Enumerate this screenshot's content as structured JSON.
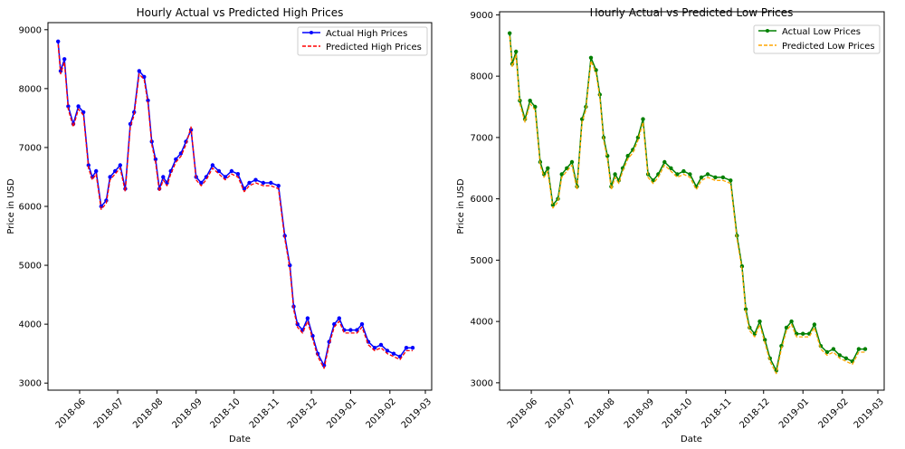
{
  "chart_data": [
    {
      "type": "line",
      "title": "Hourly Actual vs Predicted High Prices",
      "xlabel": "Date",
      "ylabel": "Price in USD",
      "x_ticks": [
        "2018-06",
        "2018-07",
        "2018-08",
        "2018-09",
        "2018-10",
        "2018-11",
        "2018-12",
        "2019-01",
        "2019-02",
        "2019-03"
      ],
      "y_ticks": [
        "3000",
        "4000",
        "5000",
        "6000",
        "7000",
        "8000",
        "9000"
      ],
      "ylim": [
        2880,
        9120
      ],
      "xlim": [
        "2018-05-07",
        "2019-03-06"
      ],
      "legend": "upper right",
      "grid": false,
      "series": [
        {
          "name": "Actual High Prices",
          "color": "#0000ff",
          "style": "solid-marker",
          "x": [
            "2018-05-15",
            "2018-05-17",
            "2018-05-20",
            "2018-05-23",
            "2018-05-27",
            "2018-05-31",
            "2018-06-04",
            "2018-06-08",
            "2018-06-11",
            "2018-06-14",
            "2018-06-18",
            "2018-06-22",
            "2018-06-25",
            "2018-06-29",
            "2018-07-03",
            "2018-07-07",
            "2018-07-11",
            "2018-07-14",
            "2018-07-18",
            "2018-07-22",
            "2018-07-25",
            "2018-07-28",
            "2018-07-31",
            "2018-08-03",
            "2018-08-06",
            "2018-08-09",
            "2018-08-12",
            "2018-08-16",
            "2018-08-20",
            "2018-08-24",
            "2018-08-28",
            "2018-09-01",
            "2018-09-05",
            "2018-09-09",
            "2018-09-14",
            "2018-09-19",
            "2018-09-24",
            "2018-09-29",
            "2018-10-04",
            "2018-10-09",
            "2018-10-13",
            "2018-10-18",
            "2018-10-24",
            "2018-10-30",
            "2018-11-05",
            "2018-11-10",
            "2018-11-14",
            "2018-11-17",
            "2018-11-20",
            "2018-11-24",
            "2018-11-28",
            "2018-12-02",
            "2018-12-06",
            "2018-12-11",
            "2018-12-15",
            "2018-12-19",
            "2018-12-23",
            "2018-12-27",
            "2019-01-01",
            "2019-01-06",
            "2019-01-10",
            "2019-01-15",
            "2019-01-20",
            "2019-01-25",
            "2019-01-30",
            "2019-02-04",
            "2019-02-09",
            "2019-02-14",
            "2019-02-19"
          ],
          "values": [
            8800,
            8300,
            8500,
            7700,
            7400,
            7700,
            7600,
            6700,
            6500,
            6600,
            6000,
            6100,
            6500,
            6600,
            6700,
            6300,
            7400,
            7600,
            8300,
            8200,
            7800,
            7100,
            6800,
            6300,
            6500,
            6400,
            6600,
            6800,
            6900,
            7100,
            7300,
            6500,
            6400,
            6500,
            6700,
            6600,
            6500,
            6600,
            6550,
            6300,
            6400,
            6450,
            6400,
            6400,
            6350,
            5500,
            5000,
            4300,
            4000,
            3900,
            4100,
            3800,
            3500,
            3300,
            3700,
            4000,
            4100,
            3900,
            3900,
            3900,
            4000,
            3700,
            3600,
            3650,
            3550,
            3500,
            3450,
            3600,
            3600
          ]
        },
        {
          "name": "Predicted High Prices",
          "color": "#ff0000",
          "style": "dashed",
          "x": [
            "2018-05-15",
            "2018-05-17",
            "2018-05-20",
            "2018-05-23",
            "2018-05-27",
            "2018-05-31",
            "2018-06-04",
            "2018-06-08",
            "2018-06-11",
            "2018-06-14",
            "2018-06-18",
            "2018-06-22",
            "2018-06-25",
            "2018-06-29",
            "2018-07-03",
            "2018-07-07",
            "2018-07-11",
            "2018-07-14",
            "2018-07-18",
            "2018-07-22",
            "2018-07-25",
            "2018-07-28",
            "2018-07-31",
            "2018-08-03",
            "2018-08-06",
            "2018-08-09",
            "2018-08-12",
            "2018-08-16",
            "2018-08-20",
            "2018-08-24",
            "2018-08-28",
            "2018-09-01",
            "2018-09-05",
            "2018-09-09",
            "2018-09-14",
            "2018-09-19",
            "2018-09-24",
            "2018-09-29",
            "2018-10-04",
            "2018-10-09",
            "2018-10-13",
            "2018-10-18",
            "2018-10-24",
            "2018-10-30",
            "2018-11-05",
            "2018-11-10",
            "2018-11-14",
            "2018-11-17",
            "2018-11-20",
            "2018-11-24",
            "2018-11-28",
            "2018-12-02",
            "2018-12-06",
            "2018-12-11",
            "2018-12-15",
            "2018-12-19",
            "2018-12-23",
            "2018-12-27",
            "2019-01-01",
            "2019-01-06",
            "2019-01-10",
            "2019-01-15",
            "2019-01-20",
            "2019-01-25",
            "2019-01-30",
            "2019-02-04",
            "2019-02-09",
            "2019-02-14",
            "2019-02-19"
          ],
          "values": [
            8750,
            8250,
            8450,
            7650,
            7350,
            7650,
            7550,
            6650,
            6450,
            6550,
            5950,
            6050,
            6450,
            6550,
            6650,
            6250,
            7350,
            7550,
            8250,
            8150,
            7750,
            7050,
            6750,
            6250,
            6450,
            6350,
            6550,
            6750,
            6850,
            7050,
            7350,
            6450,
            6350,
            6450,
            6650,
            6550,
            6450,
            6550,
            6500,
            6250,
            6350,
            6400,
            6350,
            6350,
            6300,
            5450,
            4950,
            4250,
            3950,
            3850,
            4050,
            3750,
            3450,
            3250,
            3650,
            3950,
            4050,
            3850,
            3850,
            3850,
            3950,
            3650,
            3550,
            3600,
            3500,
            3450,
            3400,
            3550,
            3550
          ]
        }
      ]
    },
    {
      "type": "line",
      "title": "Hourly Actual vs Predicted Low Prices",
      "xlabel": "Date",
      "ylabel": "Price in USD",
      "x_ticks": [
        "2018-06",
        "2018-07",
        "2018-08",
        "2018-09",
        "2018-10",
        "2018-11",
        "2018-12",
        "2019-01",
        "2019-02",
        "2019-03"
      ],
      "y_ticks": [
        "3000",
        "4000",
        "5000",
        "6000",
        "7000",
        "8000",
        "9000"
      ],
      "ylim": [
        2880,
        9050
      ],
      "xlim": [
        "2018-05-07",
        "2019-03-06"
      ],
      "legend": "upper right",
      "grid": false,
      "series": [
        {
          "name": "Actual Low Prices",
          "color": "#008000",
          "style": "solid-marker",
          "x": [
            "2018-05-15",
            "2018-05-17",
            "2018-05-20",
            "2018-05-23",
            "2018-05-27",
            "2018-05-31",
            "2018-06-04",
            "2018-06-08",
            "2018-06-11",
            "2018-06-14",
            "2018-06-18",
            "2018-06-22",
            "2018-06-25",
            "2018-06-29",
            "2018-07-03",
            "2018-07-07",
            "2018-07-11",
            "2018-07-14",
            "2018-07-18",
            "2018-07-22",
            "2018-07-25",
            "2018-07-28",
            "2018-07-31",
            "2018-08-03",
            "2018-08-06",
            "2018-08-09",
            "2018-08-12",
            "2018-08-16",
            "2018-08-20",
            "2018-08-24",
            "2018-08-28",
            "2018-09-01",
            "2018-09-05",
            "2018-09-09",
            "2018-09-14",
            "2018-09-19",
            "2018-09-24",
            "2018-09-29",
            "2018-10-04",
            "2018-10-09",
            "2018-10-13",
            "2018-10-18",
            "2018-10-24",
            "2018-10-30",
            "2018-11-05",
            "2018-11-10",
            "2018-11-14",
            "2018-11-17",
            "2018-11-20",
            "2018-11-24",
            "2018-11-28",
            "2018-12-02",
            "2018-12-06",
            "2018-12-11",
            "2018-12-15",
            "2018-12-19",
            "2018-12-23",
            "2018-12-27",
            "2019-01-01",
            "2019-01-06",
            "2019-01-10",
            "2019-01-15",
            "2019-01-20",
            "2019-01-25",
            "2019-01-30",
            "2019-02-04",
            "2019-02-09",
            "2019-02-14",
            "2019-02-19"
          ],
          "values": [
            8700,
            8200,
            8400,
            7600,
            7300,
            7600,
            7500,
            6600,
            6400,
            6500,
            5900,
            6000,
            6400,
            6500,
            6600,
            6200,
            7300,
            7500,
            8300,
            8100,
            7700,
            7000,
            6700,
            6200,
            6400,
            6300,
            6500,
            6700,
            6800,
            7000,
            7300,
            6400,
            6300,
            6400,
            6600,
            6500,
            6400,
            6450,
            6400,
            6200,
            6350,
            6400,
            6350,
            6350,
            6300,
            5400,
            4900,
            4200,
            3900,
            3800,
            4000,
            3700,
            3400,
            3200,
            3600,
            3900,
            4000,
            3800,
            3800,
            3800,
            3950,
            3600,
            3500,
            3550,
            3450,
            3400,
            3350,
            3550,
            3550
          ]
        },
        {
          "name": "Predicted Low Prices",
          "color": "#ffa500",
          "style": "dashed",
          "x": [
            "2018-05-15",
            "2018-05-17",
            "2018-05-20",
            "2018-05-23",
            "2018-05-27",
            "2018-05-31",
            "2018-06-04",
            "2018-06-08",
            "2018-06-11",
            "2018-06-14",
            "2018-06-18",
            "2018-06-22",
            "2018-06-25",
            "2018-06-29",
            "2018-07-03",
            "2018-07-07",
            "2018-07-11",
            "2018-07-14",
            "2018-07-18",
            "2018-07-22",
            "2018-07-25",
            "2018-07-28",
            "2018-07-31",
            "2018-08-03",
            "2018-08-06",
            "2018-08-09",
            "2018-08-12",
            "2018-08-16",
            "2018-08-20",
            "2018-08-24",
            "2018-08-28",
            "2018-09-01",
            "2018-09-05",
            "2018-09-09",
            "2018-09-14",
            "2018-09-19",
            "2018-09-24",
            "2018-09-29",
            "2018-10-04",
            "2018-10-09",
            "2018-10-13",
            "2018-10-18",
            "2018-10-24",
            "2018-10-30",
            "2018-11-05",
            "2018-11-10",
            "2018-11-14",
            "2018-11-17",
            "2018-11-20",
            "2018-11-24",
            "2018-11-28",
            "2018-12-02",
            "2018-12-06",
            "2018-12-11",
            "2018-12-15",
            "2018-12-19",
            "2018-12-23",
            "2018-12-27",
            "2019-01-01",
            "2019-01-06",
            "2019-01-10",
            "2019-01-15",
            "2019-01-20",
            "2019-01-25",
            "2019-01-30",
            "2019-02-04",
            "2019-02-09",
            "2019-02-14",
            "2019-02-19"
          ],
          "values": [
            8650,
            8150,
            8350,
            7550,
            7250,
            7550,
            7450,
            6550,
            6350,
            6450,
            5850,
            5950,
            6350,
            6450,
            6550,
            6150,
            7250,
            7450,
            8250,
            8050,
            7650,
            6950,
            6650,
            6150,
            6350,
            6250,
            6450,
            6650,
            6750,
            6950,
            7250,
            6350,
            6250,
            6350,
            6550,
            6450,
            6350,
            6400,
            6350,
            6150,
            6300,
            6350,
            6300,
            6300,
            6250,
            5350,
            4850,
            4150,
            3850,
            3750,
            3950,
            3650,
            3350,
            3150,
            3550,
            3850,
            3950,
            3750,
            3750,
            3750,
            3900,
            3550,
            3450,
            3500,
            3400,
            3350,
            3300,
            3500,
            3500
          ]
        }
      ]
    }
  ]
}
